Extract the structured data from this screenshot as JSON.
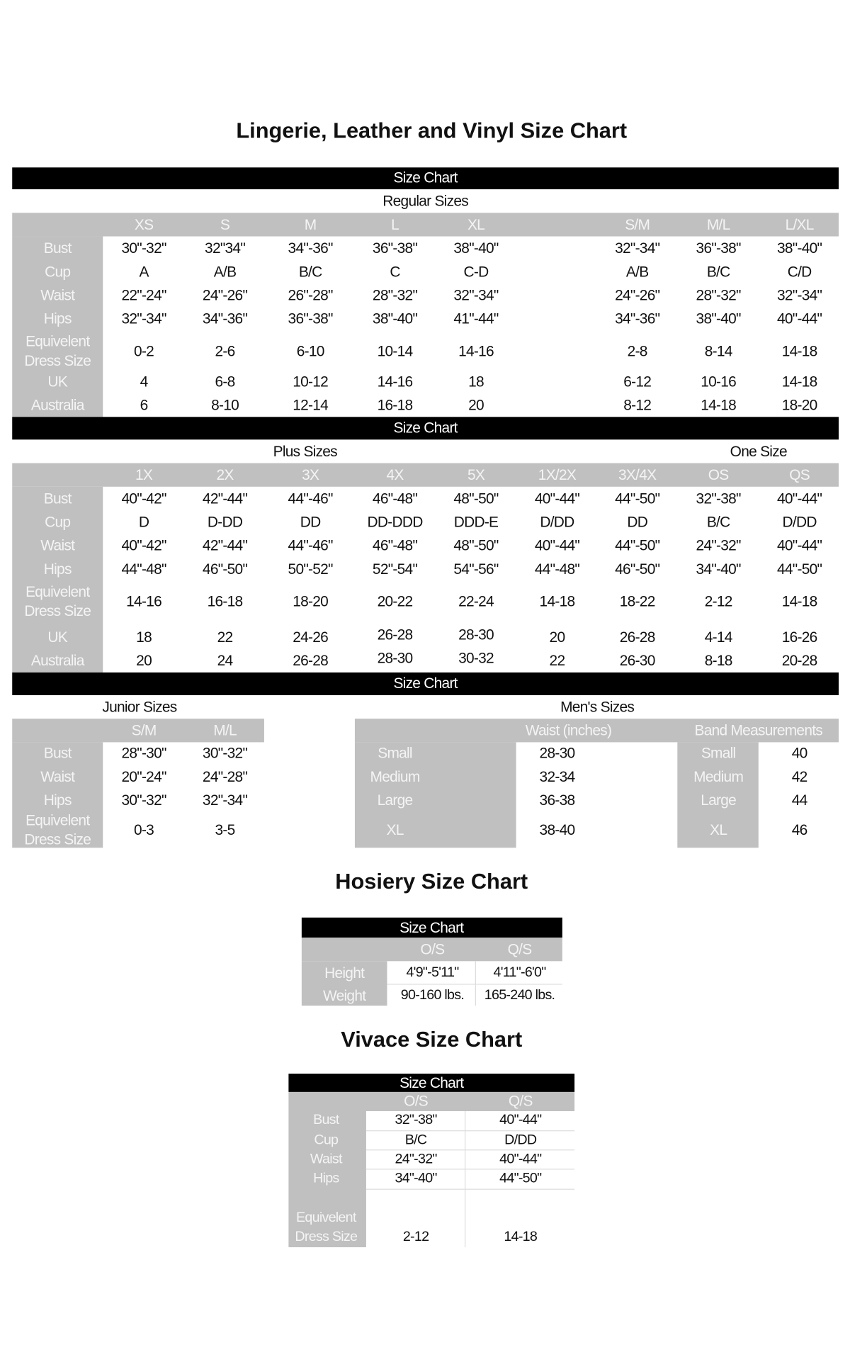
{
  "main_title": "Lingerie, Leather and Vinyl Size Chart",
  "regular": {
    "header": "Size Chart",
    "subtitle": "Regular Sizes",
    "columns": [
      "XS",
      "S",
      "M",
      "L",
      "XL",
      "S/M",
      "M/L",
      "L/XL"
    ],
    "rows": [
      {
        "label": [
          "Bust"
        ],
        "values": [
          "30\"-32\"",
          "32\"34\"",
          "34\"-36\"",
          "36\"-38\"",
          "38\"-40\"",
          "32\"-34\"",
          "36\"-38\"",
          "38\"-40\""
        ]
      },
      {
        "label": [
          "Cup"
        ],
        "values": [
          "A",
          "A/B",
          "B/C",
          "C",
          "C-D",
          "A/B",
          "B/C",
          "C/D"
        ]
      },
      {
        "label": [
          "Waist"
        ],
        "values": [
          "22\"-24\"",
          "24\"-26\"",
          "26\"-28\"",
          "28\"-32\"",
          "32\"-34\"",
          "24\"-26\"",
          "28\"-32\"",
          "32\"-34\""
        ]
      },
      {
        "label": [
          "Hips"
        ],
        "values": [
          "32\"-34\"",
          "34\"-36\"",
          "36\"-38\"",
          "38\"-40\"",
          "41\"-44\"",
          "34\"-36\"",
          "38\"-40\"",
          "40\"-44\""
        ]
      },
      {
        "label": [
          "Equivelent",
          "Dress Size"
        ],
        "values": [
          "0-2",
          "2-6",
          "6-10",
          "10-14",
          "14-16",
          "2-8",
          "8-14",
          "14-18"
        ]
      },
      {
        "label": [
          "UK"
        ],
        "values": [
          "4",
          "6-8",
          "10-12",
          "14-16",
          "18",
          "6-12",
          "10-16",
          "14-18"
        ]
      },
      {
        "label": [
          "Australia"
        ],
        "values": [
          "6",
          "8-10",
          "12-14",
          "16-18",
          "20",
          "8-12",
          "14-18",
          "18-20"
        ]
      }
    ]
  },
  "plus": {
    "header": "Size Chart",
    "subtitle": "Plus Sizes",
    "one_size_label": "One Size",
    "columns": [
      "1X",
      "2X",
      "3X",
      "4X",
      "5X",
      "1X/2X",
      "3X/4X",
      "OS",
      "QS"
    ],
    "rows": [
      {
        "label": [
          "Bust"
        ],
        "values": [
          "40\"-42\"",
          "42\"-44\"",
          "44\"-46\"",
          "46\"-48\"",
          "48\"-50\"",
          "40\"-44\"",
          "44\"-50\"",
          "32\"-38\"",
          "40\"-44\""
        ]
      },
      {
        "label": [
          "Cup"
        ],
        "values": [
          "D",
          "D-DD",
          "DD",
          "DD-DDD",
          "DDD-E",
          "D/DD",
          "DD",
          "B/C",
          "D/DD"
        ]
      },
      {
        "label": [
          "Waist"
        ],
        "values": [
          "40\"-42\"",
          "42\"-44\"",
          "44\"-46\"",
          "46\"-48\"",
          "48\"-50\"",
          "40\"-44\"",
          "44\"-50\"",
          "24\"-32\"",
          "40\"-44\""
        ]
      },
      {
        "label": [
          "Hips"
        ],
        "values": [
          "44\"-48\"",
          "46\"-50\"",
          "50\"-52\"",
          "52\"-54\"",
          "54\"-56\"",
          "44\"-48\"",
          "46\"-50\"",
          "34\"-40\"",
          "44\"-50\""
        ]
      },
      {
        "label": [
          "Equivelent",
          "Dress Size"
        ],
        "values": [
          "14-16",
          "16-18",
          "18-20",
          "20-22",
          "22-24",
          "14-18",
          "18-22",
          "2-12",
          "14-18"
        ]
      },
      {
        "label": [
          "UK"
        ],
        "values": [
          "18",
          "22",
          "24-26",
          "26-28",
          "28-30",
          "20",
          "26-28",
          "4-14",
          "16-26"
        ]
      },
      {
        "label": [
          "Australia"
        ],
        "values": [
          "20",
          "24",
          "26-28",
          "28-30",
          "30-32",
          "22",
          "26-30",
          "8-18",
          "20-28"
        ]
      }
    ]
  },
  "third_header": "Size Chart",
  "junior": {
    "subtitle": "Junior Sizes",
    "columns": [
      "S/M",
      "M/L"
    ],
    "rows": [
      {
        "label": [
          "Bust"
        ],
        "values": [
          "28\"-30\"",
          "30\"-32\""
        ]
      },
      {
        "label": [
          "Waist"
        ],
        "values": [
          "20\"-24\"",
          "24\"-28\""
        ]
      },
      {
        "label": [
          "Hips"
        ],
        "values": [
          "30\"-32\"",
          "32\"-34\""
        ]
      },
      {
        "label": [
          "Equivelent",
          "Dress Size"
        ],
        "values": [
          "0-3",
          "3-5"
        ]
      }
    ]
  },
  "mens": {
    "subtitle": "Men's Sizes",
    "waist_header": "Waist (inches)",
    "band_header": "Band Measurements",
    "rows": [
      {
        "size": "Small",
        "waist": "28-30",
        "band_size": "Small",
        "band": "40"
      },
      {
        "size": "Medium",
        "waist": "32-34",
        "band_size": "Medium",
        "band": "42"
      },
      {
        "size": "Large",
        "waist": "36-38",
        "band_size": "Large",
        "band": "44"
      },
      {
        "size": "XL",
        "waist": "38-40",
        "band_size": "XL",
        "band": "46"
      }
    ]
  },
  "hosiery": {
    "title": "Hosiery Size Chart",
    "header": "Size Chart",
    "columns": [
      "O/S",
      "Q/S"
    ],
    "rows": [
      {
        "label": [
          "Height"
        ],
        "values": [
          "4'9\"-5'11\"",
          "4'11\"-6'0\""
        ]
      },
      {
        "label": [
          "Weight"
        ],
        "values": [
          "90-160 lbs.",
          "165-240 lbs."
        ]
      }
    ]
  },
  "vivace": {
    "title": "Vivace Size Chart",
    "header": "Size Chart",
    "columns": [
      "O/S",
      "Q/S"
    ],
    "rows": [
      {
        "label": [
          "Bust"
        ],
        "values": [
          "32\"-38\"",
          "40\"-44\""
        ]
      },
      {
        "label": [
          "Cup"
        ],
        "values": [
          "B/C",
          "D/DD"
        ]
      },
      {
        "label": [
          "Waist"
        ],
        "values": [
          "24\"-32\"",
          "40\"-44\""
        ]
      },
      {
        "label": [
          "Hips"
        ],
        "values": [
          "34\"-40\"",
          "44\"-50\""
        ]
      },
      {
        "label": [
          "Equivelent",
          "Dress Size"
        ],
        "values": [
          "2-12",
          "14-18"
        ]
      }
    ]
  },
  "colors": {
    "header_bar": "#000000",
    "label_fill": "#c0c0c0",
    "label_text": "#ffffff"
  }
}
